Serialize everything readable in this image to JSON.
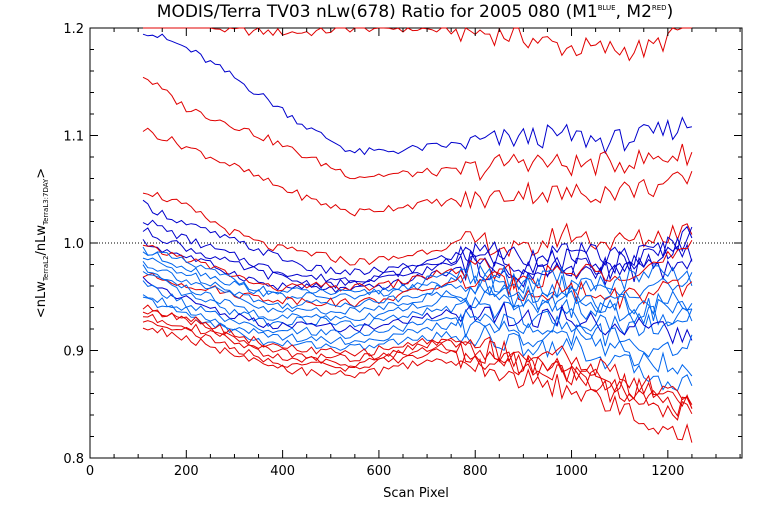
{
  "chart_data": {
    "type": "line",
    "title": {
      "main": "MODIS/Terra TV03 nLw(678) Ratio for 2005 080 (M1",
      "sup1": "BLUE",
      "mid": ", M2",
      "sup2": "RED",
      "end": ")"
    },
    "xlabel": "Scan Pixel",
    "ylabel": {
      "p1": "<nLw",
      "s1": "TerraL2",
      "p2": "/nLw",
      "s2": "TerraL3:7DAY",
      "p3": ">"
    },
    "xlim": [
      0,
      1354
    ],
    "ylim": [
      0.8,
      1.2
    ],
    "x_ticks": [
      0,
      200,
      400,
      600,
      800,
      1000,
      1200
    ],
    "x_tick_labels": [
      "0",
      "200",
      "400",
      "600",
      "800",
      "1000",
      "1200"
    ],
    "y_ticks": [
      0.8,
      0.9,
      1.0,
      1.1,
      1.2
    ],
    "y_tick_labels": [
      "0.8",
      "0.9",
      "1.0",
      "1.1",
      "1.2"
    ],
    "reference_line": {
      "y": 1.0,
      "style": "dotted"
    },
    "colors": {
      "red": "#e00000",
      "blue": "#0000cc",
      "lightblue": "#0066ee"
    },
    "series": [
      {
        "color": "red",
        "values": [
          1.214,
          1.206,
          1.198,
          1.196,
          1.196,
          1.2,
          1.2,
          1.198,
          1.196,
          1.192,
          1.182,
          1.18,
          1.18,
          1.205
        ]
      },
      {
        "color": "blue",
        "values": [
          1.198,
          1.182,
          1.158,
          1.132,
          1.105,
          1.084,
          1.086,
          1.09,
          1.094,
          1.098,
          1.1,
          1.094,
          1.1,
          1.112
        ]
      },
      {
        "color": "red",
        "values": [
          1.156,
          1.126,
          1.112,
          1.096,
          1.078,
          1.062,
          1.064,
          1.066,
          1.069,
          1.078,
          1.072,
          1.074,
          1.078,
          1.084
        ]
      },
      {
        "color": "red",
        "values": [
          1.106,
          1.09,
          1.074,
          1.056,
          1.04,
          1.028,
          1.034,
          1.038,
          1.04,
          1.048,
          1.045,
          1.048,
          1.052,
          1.058
        ]
      },
      {
        "color": "red",
        "values": [
          1.05,
          1.034,
          1.012,
          0.996,
          0.99,
          0.982,
          0.986,
          0.996,
          1.002,
          0.99,
          1.01,
          1.0,
          1.004,
          1.016
        ]
      },
      {
        "color": "blue",
        "values": [
          1.036,
          1.018,
          1.004,
          0.99,
          0.976,
          0.972,
          0.976,
          0.985,
          0.994,
          0.988,
          0.99,
          0.988,
          0.99,
          1.01
        ]
      },
      {
        "color": "blue",
        "values": [
          1.022,
          1.004,
          0.99,
          0.976,
          0.968,
          0.966,
          0.972,
          0.982,
          0.99,
          0.982,
          0.984,
          0.98,
          0.99,
          1.004
        ]
      },
      {
        "color": "blue",
        "values": [
          1.012,
          0.996,
          0.982,
          0.97,
          0.962,
          0.962,
          0.968,
          0.978,
          0.984,
          0.974,
          0.978,
          0.976,
          0.984,
          0.99
        ]
      },
      {
        "color": "blue",
        "values": [
          1.0,
          0.988,
          0.974,
          0.96,
          0.958,
          0.956,
          0.962,
          0.972,
          0.978,
          0.968,
          0.974,
          0.972,
          0.976,
          0.978
        ]
      },
      {
        "color": "red",
        "values": [
          0.996,
          0.986,
          0.972,
          0.958,
          0.96,
          0.958,
          0.962,
          0.972,
          0.976,
          0.966,
          0.972,
          0.974,
          0.978,
          0.992
        ]
      },
      {
        "color": "lightblue",
        "values": [
          0.994,
          0.982,
          0.968,
          0.954,
          0.955,
          0.952,
          0.958,
          0.968,
          0.974,
          0.962,
          0.966,
          0.962,
          0.968,
          0.97
        ]
      },
      {
        "color": "lightblue",
        "values": [
          0.992,
          0.978,
          0.964,
          0.952,
          0.95,
          0.95,
          0.955,
          0.962,
          0.968,
          0.958,
          0.96,
          0.952,
          0.962,
          0.962
        ]
      },
      {
        "color": "red",
        "values": [
          0.97,
          0.962,
          0.954,
          0.948,
          0.946,
          0.944,
          0.95,
          0.96,
          0.966,
          0.956,
          0.958,
          0.95,
          0.952,
          0.958
        ]
      },
      {
        "color": "lightblue",
        "values": [
          0.986,
          0.972,
          0.958,
          0.942,
          0.944,
          0.944,
          0.948,
          0.958,
          0.962,
          0.952,
          0.952,
          0.945,
          0.945,
          0.944
        ]
      },
      {
        "color": "lightblue",
        "values": [
          0.982,
          0.966,
          0.952,
          0.936,
          0.938,
          0.936,
          0.944,
          0.952,
          0.956,
          0.946,
          0.946,
          0.94,
          0.938,
          0.938
        ]
      },
      {
        "color": "lightblue",
        "values": [
          0.976,
          0.958,
          0.944,
          0.93,
          0.932,
          0.93,
          0.938,
          0.946,
          0.95,
          0.94,
          0.942,
          0.936,
          0.932,
          0.934
        ]
      },
      {
        "color": "lightblue",
        "values": [
          0.972,
          0.952,
          0.938,
          0.926,
          0.928,
          0.924,
          0.93,
          0.938,
          0.942,
          0.932,
          0.934,
          0.926,
          0.924,
          0.928
        ]
      },
      {
        "color": "blue",
        "values": [
          0.966,
          0.948,
          0.934,
          0.922,
          0.924,
          0.92,
          0.926,
          0.934,
          0.938,
          0.93,
          0.932,
          0.924,
          0.918,
          0.914
        ]
      },
      {
        "color": "lightblue",
        "values": [
          0.962,
          0.944,
          0.928,
          0.916,
          0.918,
          0.914,
          0.92,
          0.928,
          0.932,
          0.922,
          0.924,
          0.912,
          0.904,
          0.905
        ]
      },
      {
        "color": "lightblue",
        "values": [
          0.954,
          0.938,
          0.924,
          0.912,
          0.912,
          0.908,
          0.914,
          0.922,
          0.924,
          0.914,
          0.916,
          0.904,
          0.892,
          0.886
        ]
      },
      {
        "color": "lightblue",
        "values": [
          0.948,
          0.934,
          0.92,
          0.906,
          0.906,
          0.902,
          0.908,
          0.914,
          0.914,
          0.904,
          0.906,
          0.892,
          0.878,
          0.866
        ]
      },
      {
        "color": "red",
        "values": [
          0.94,
          0.932,
          0.918,
          0.904,
          0.9,
          0.896,
          0.904,
          0.91,
          0.906,
          0.896,
          0.896,
          0.88,
          0.866,
          0.856
        ]
      },
      {
        "color": "red",
        "values": [
          0.936,
          0.93,
          0.914,
          0.9,
          0.895,
          0.892,
          0.9,
          0.908,
          0.9,
          0.89,
          0.886,
          0.872,
          0.86,
          0.852
        ]
      },
      {
        "color": "red",
        "values": [
          0.932,
          0.924,
          0.91,
          0.896,
          0.89,
          0.888,
          0.896,
          0.904,
          0.896,
          0.886,
          0.882,
          0.868,
          0.856,
          0.846
        ]
      },
      {
        "color": "red",
        "values": [
          0.928,
          0.92,
          0.904,
          0.89,
          0.886,
          0.884,
          0.892,
          0.898,
          0.892,
          0.882,
          0.878,
          0.864,
          0.852,
          0.84
        ]
      },
      {
        "color": "red",
        "values": [
          0.922,
          0.912,
          0.898,
          0.884,
          0.88,
          0.876,
          0.884,
          0.892,
          0.882,
          0.872,
          0.866,
          0.85,
          0.836,
          0.82
        ]
      }
    ]
  }
}
